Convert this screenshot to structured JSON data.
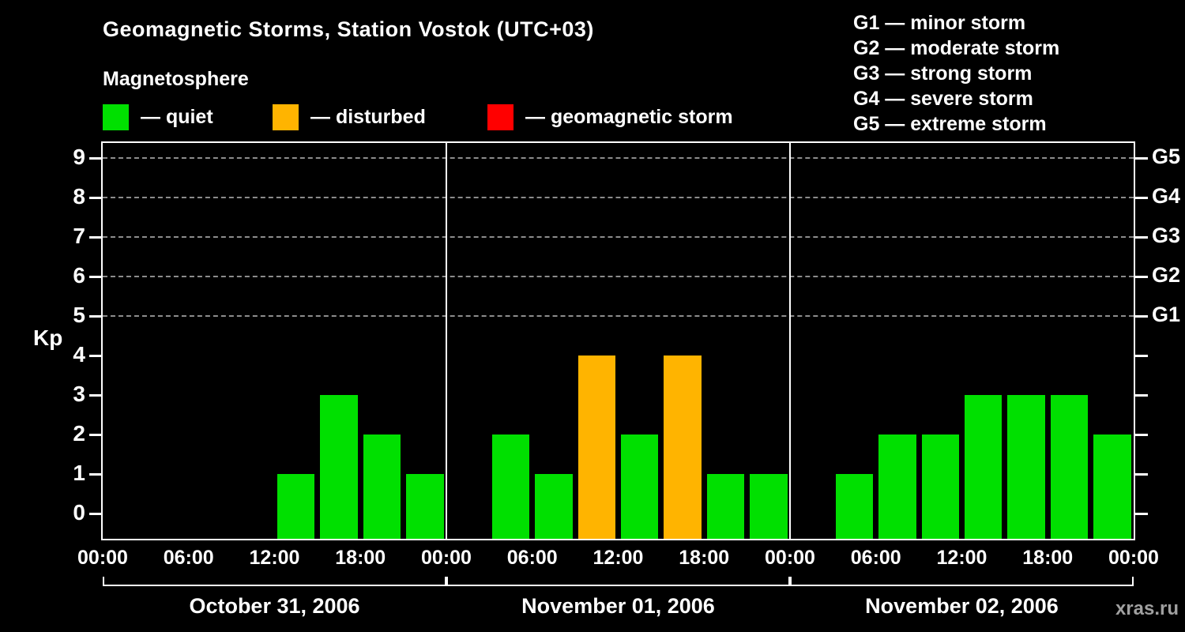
{
  "title": "Geomagnetic Storms, Station Vostok (UTC+03)",
  "subtitle": "Magnetosphere",
  "legend": {
    "quiet": {
      "label": "— quiet",
      "color": "#00e000"
    },
    "disturbed": {
      "label": "— disturbed",
      "color": "#ffb400"
    },
    "storm": {
      "label": "— geomagnetic storm",
      "color": "#ff0000"
    }
  },
  "g_legend": [
    {
      "label": "G1 — minor storm"
    },
    {
      "label": "G2 — moderate storm"
    },
    {
      "label": "G3 — strong storm"
    },
    {
      "label": "G4 — severe storm"
    },
    {
      "label": "G5 — extreme storm"
    }
  ],
  "watermark": "xras.ru",
  "chart_data": {
    "type": "bar",
    "title": "Geomagnetic Storms, Station Vostok (UTC+03)",
    "ylabel": "Kp",
    "ylim": [
      0,
      9
    ],
    "yticks": [
      0,
      1,
      2,
      3,
      4,
      5,
      6,
      7,
      8,
      9
    ],
    "gridlines_kp": [
      5,
      6,
      7,
      8,
      9
    ],
    "grid": "dashed horizontal lines at G-storm levels (Kp 5–9)",
    "right_axis_labels": [
      {
        "kp": 9,
        "label": "G5"
      },
      {
        "kp": 8,
        "label": "G4"
      },
      {
        "kp": 7,
        "label": "G3"
      },
      {
        "kp": 6,
        "label": "G2"
      },
      {
        "kp": 5,
        "label": "G1"
      }
    ],
    "x_tick_labels": [
      "00:00",
      "06:00",
      "12:00",
      "18:00",
      "00:00",
      "06:00",
      "12:00",
      "18:00",
      "00:00",
      "06:00",
      "12:00",
      "18:00",
      "00:00"
    ],
    "interval_hours": 3,
    "color_rules": {
      "disturbed_kp": 4,
      "storm_kp_min": 5
    },
    "days": [
      {
        "date": "October 31, 2006",
        "values": [
          0,
          0,
          0,
          0,
          1,
          3,
          2,
          1
        ]
      },
      {
        "date": "November 01, 2006",
        "values": [
          0,
          2,
          1,
          4,
          2,
          4,
          1,
          1
        ]
      },
      {
        "date": "November 02, 2006",
        "values": [
          0,
          1,
          2,
          2,
          3,
          3,
          3,
          2
        ]
      }
    ]
  }
}
